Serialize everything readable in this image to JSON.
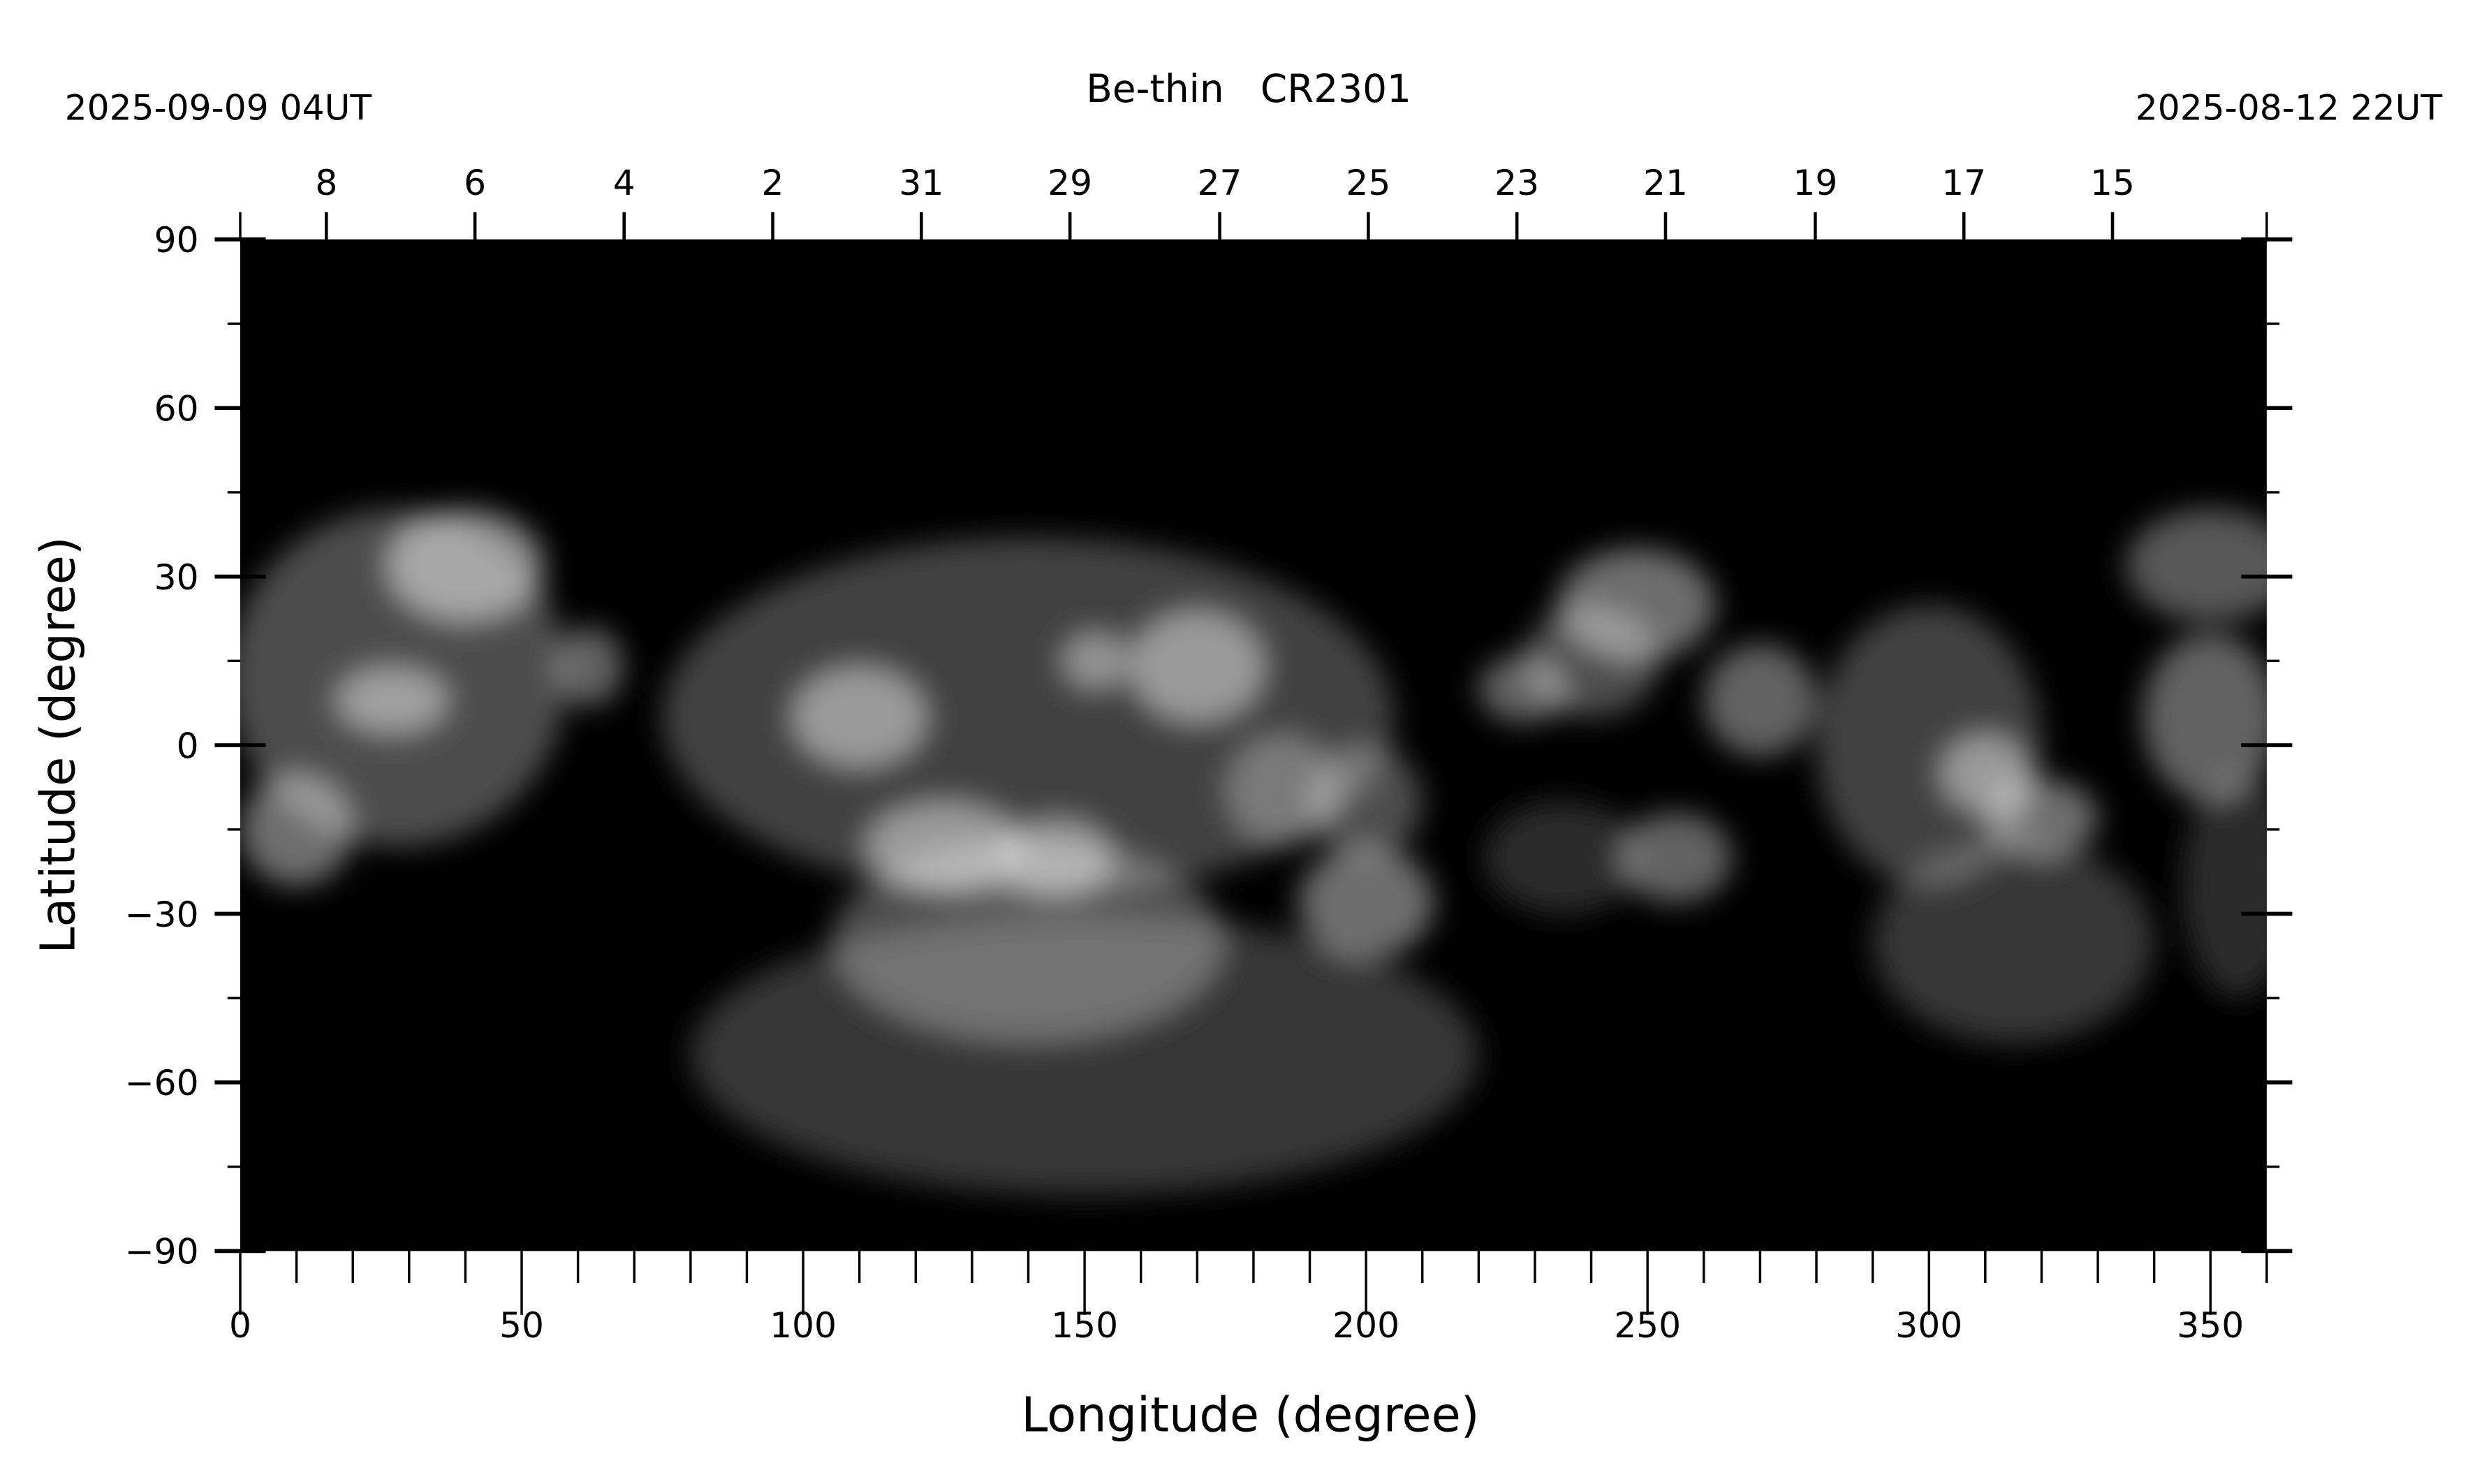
{
  "chart_data": {
    "type": "heatmap",
    "title": "Be-thin   CR2301",
    "start_date_label": "2025-09-09 04UT",
    "end_date_label": "2025-08-12 22UT",
    "xlabel": "Longitude (degree)",
    "ylabel": "Latitude (degree)",
    "xlim": [
      0,
      360
    ],
    "ylim": [
      -90,
      90
    ],
    "x_ticks": [
      0,
      50,
      100,
      150,
      200,
      250,
      300,
      350
    ],
    "x_tick_labels": [
      "0",
      "50",
      "100",
      "150",
      "200",
      "250",
      "300",
      "350"
    ],
    "x_minor_step": 10,
    "y_ticks": [
      90,
      60,
      30,
      0,
      -30,
      -60,
      -90
    ],
    "y_tick_labels": [
      "90",
      "60",
      "30",
      "0",
      "−30",
      "−60",
      "−90"
    ],
    "y_minor_step": 15,
    "date_ticks": [
      {
        "label": "8",
        "lon": 15.3
      },
      {
        "label": "6",
        "lon": 41.7
      },
      {
        "label": "4",
        "lon": 68.2
      },
      {
        "label": "2",
        "lon": 94.6
      },
      {
        "label": "31",
        "lon": 121.0
      },
      {
        "label": "29",
        "lon": 147.4
      },
      {
        "label": "27",
        "lon": 174.0
      },
      {
        "label": "25",
        "lon": 200.4
      },
      {
        "label": "23",
        "lon": 226.8
      },
      {
        "label": "21",
        "lon": 253.2
      },
      {
        "label": "19",
        "lon": 279.8
      },
      {
        "label": "17",
        "lon": 306.2
      },
      {
        "label": "15",
        "lon": 332.6
      }
    ],
    "colormap": "grayscale",
    "background_color": "#000000",
    "image_features": [
      {
        "lon": 28,
        "lat": 12,
        "rlon": 30,
        "rlat": 30,
        "intensity": 0.35
      },
      {
        "lon": 40,
        "lat": 32,
        "rlon": 14,
        "rlat": 10,
        "intensity": 0.6
      },
      {
        "lon": 27,
        "lat": 8,
        "rlon": 10,
        "rlat": 6,
        "intensity": 0.55
      },
      {
        "lon": 10,
        "lat": -15,
        "rlon": 10,
        "rlat": 10,
        "intensity": 0.5
      },
      {
        "lon": 62,
        "lat": 14,
        "rlon": 6,
        "rlat": 7,
        "intensity": 0.45
      },
      {
        "lon": 140,
        "lat": 5,
        "rlon": 65,
        "rlat": 32,
        "intensity": 0.3
      },
      {
        "lon": 150,
        "lat": -55,
        "rlon": 70,
        "rlat": 25,
        "intensity": 0.25
      },
      {
        "lon": 140,
        "lat": -35,
        "rlon": 35,
        "rlat": 18,
        "intensity": 0.35
      },
      {
        "lon": 110,
        "lat": 5,
        "rlon": 12,
        "rlat": 9,
        "intensity": 0.55
      },
      {
        "lon": 125,
        "lat": -18,
        "rlon": 14,
        "rlat": 8,
        "intensity": 0.55
      },
      {
        "lon": 145,
        "lat": -20,
        "rlon": 10,
        "rlat": 7,
        "intensity": 0.5
      },
      {
        "lon": 170,
        "lat": 14,
        "rlon": 12,
        "rlat": 10,
        "intensity": 0.55
      },
      {
        "lon": 152,
        "lat": 15,
        "rlon": 6,
        "rlat": 5,
        "intensity": 0.5
      },
      {
        "lon": 185,
        "lat": -8,
        "rlon": 10,
        "rlat": 10,
        "intensity": 0.35
      },
      {
        "lon": 200,
        "lat": -28,
        "rlon": 12,
        "rlat": 10,
        "intensity": 0.5
      },
      {
        "lon": 200,
        "lat": -10,
        "rlon": 10,
        "rlat": 10,
        "intensity": 0.35
      },
      {
        "lon": 248,
        "lat": 25,
        "rlon": 14,
        "rlat": 10,
        "intensity": 0.5
      },
      {
        "lon": 228,
        "lat": 10,
        "rlon": 8,
        "rlat": 6,
        "intensity": 0.45
      },
      {
        "lon": 240,
        "lat": 15,
        "rlon": 12,
        "rlat": 10,
        "intensity": 0.35
      },
      {
        "lon": 270,
        "lat": 8,
        "rlon": 10,
        "rlat": 10,
        "intensity": 0.45
      },
      {
        "lon": 255,
        "lat": -20,
        "rlon": 10,
        "rlat": 8,
        "intensity": 0.45
      },
      {
        "lon": 235,
        "lat": -20,
        "rlon": 14,
        "rlat": 10,
        "intensity": 0.2
      },
      {
        "lon": 300,
        "lat": 0,
        "rlon": 20,
        "rlat": 25,
        "intensity": 0.3
      },
      {
        "lon": 315,
        "lat": -35,
        "rlon": 25,
        "rlat": 18,
        "intensity": 0.25
      },
      {
        "lon": 310,
        "lat": -5,
        "rlon": 8,
        "rlat": 7,
        "intensity": 0.55
      },
      {
        "lon": 320,
        "lat": -13,
        "rlon": 10,
        "rlat": 7,
        "intensity": 0.5
      },
      {
        "lon": 350,
        "lat": 32,
        "rlon": 15,
        "rlat": 10,
        "intensity": 0.4
      },
      {
        "lon": 350,
        "lat": 5,
        "rlon": 12,
        "rlat": 15,
        "intensity": 0.45
      },
      {
        "lon": 355,
        "lat": -25,
        "rlon": 10,
        "rlat": 20,
        "intensity": 0.2
      }
    ]
  }
}
